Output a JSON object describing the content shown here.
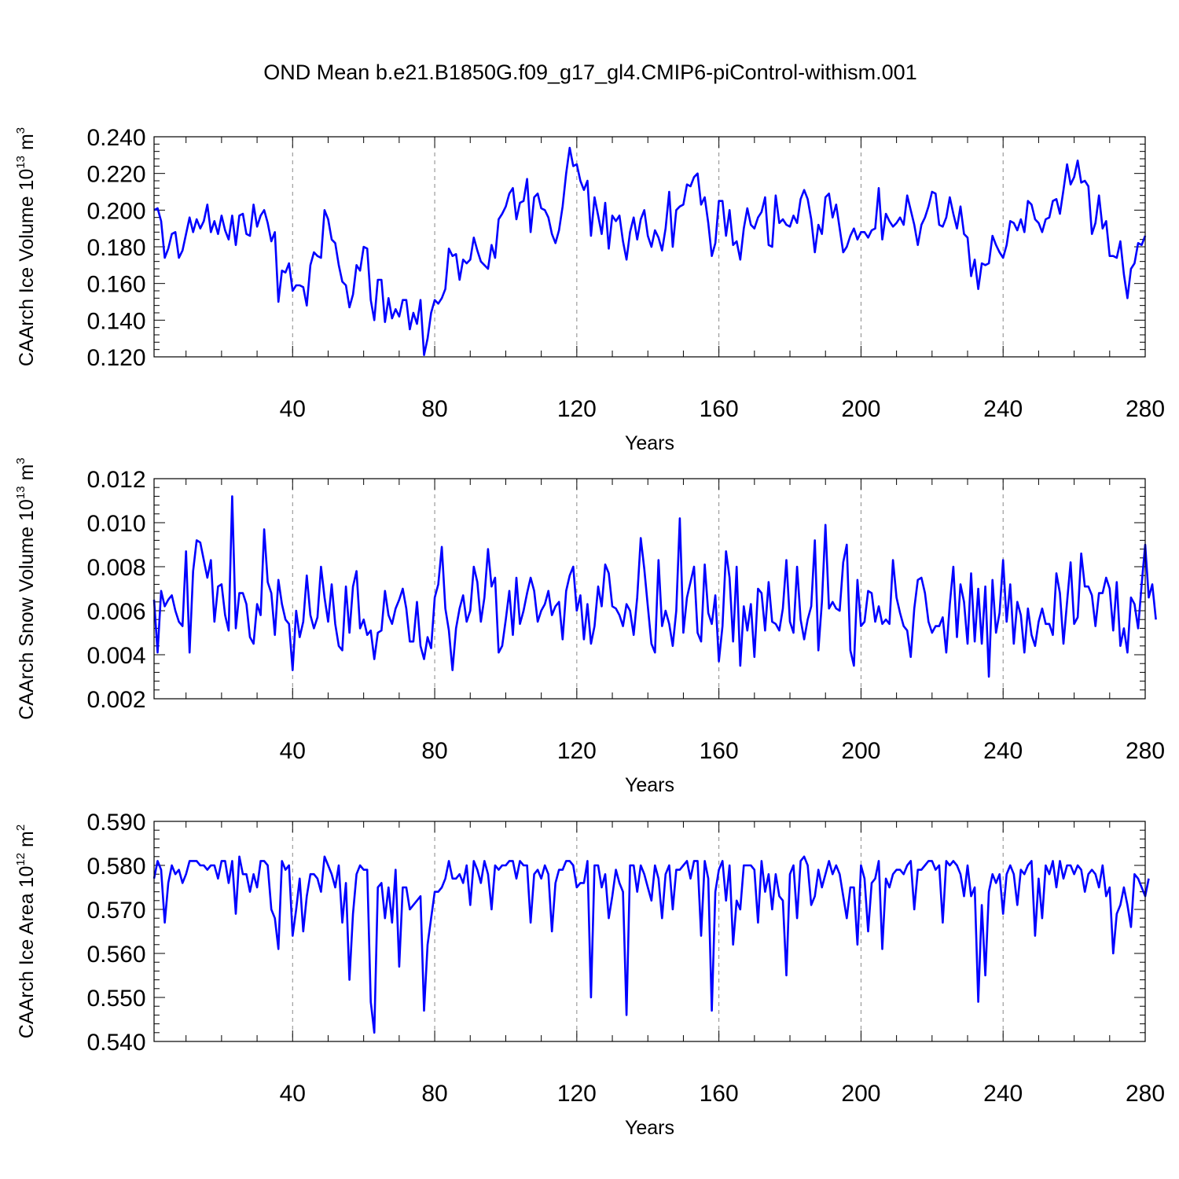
{
  "title": "OND Mean b.e21.B1850G.f09_g17_gl4.CMIP6-piControl-withism.001",
  "colors": {
    "line": "#0000ff",
    "axes": "#000000",
    "grid": "#888888"
  },
  "chart_data": [
    {
      "type": "line",
      "ylabel": "CAArch Ice Volume 10",
      "ylabel_exp": "13",
      "ylabel_unit": " m",
      "ylabel_unit_exp": "3",
      "xlabel": "Years",
      "xlim": [
        1,
        280
      ],
      "ylim": [
        0.12,
        0.24
      ],
      "xticks": [
        40,
        80,
        120,
        160,
        200,
        240,
        280
      ],
      "yticks": [
        "0.120",
        "0.140",
        "0.160",
        "0.180",
        "0.200",
        "0.220",
        "0.240"
      ],
      "x_grid": "dashed vertical at major ticks",
      "series": [
        {
          "values": [
            0.2,
            0.201,
            0.194,
            0.174,
            0.179,
            0.187,
            0.188,
            0.174,
            0.178,
            0.187,
            0.196,
            0.188,
            0.195,
            0.19,
            0.194,
            0.203,
            0.188,
            0.194,
            0.187,
            0.197,
            0.189,
            0.184,
            0.197,
            0.181,
            0.197,
            0.198,
            0.187,
            0.186,
            0.203,
            0.191,
            0.197,
            0.2,
            0.193,
            0.183,
            0.188,
            0.15,
            0.167,
            0.166,
            0.171,
            0.156,
            0.159,
            0.159,
            0.158,
            0.148,
            0.17,
            0.177,
            0.175,
            0.174,
            0.2,
            0.195,
            0.184,
            0.182,
            0.17,
            0.161,
            0.159,
            0.147,
            0.154,
            0.17,
            0.167,
            0.18,
            0.179,
            0.151,
            0.14,
            0.162,
            0.162,
            0.139,
            0.152,
            0.141,
            0.146,
            0.142,
            0.151,
            0.151,
            0.135,
            0.144,
            0.138,
            0.151,
            0.121,
            0.13,
            0.144,
            0.151,
            0.149,
            0.152,
            0.157,
            0.179,
            0.175,
            0.176,
            0.162,
            0.173,
            0.171,
            0.173,
            0.185,
            0.178,
            0.172,
            0.17,
            0.168,
            0.181,
            0.174,
            0.195,
            0.198,
            0.202,
            0.209,
            0.212,
            0.195,
            0.204,
            0.205,
            0.217,
            0.188,
            0.207,
            0.209,
            0.201,
            0.2,
            0.196,
            0.187,
            0.182,
            0.189,
            0.202,
            0.22,
            0.234,
            0.224,
            0.225,
            0.216,
            0.211,
            0.216,
            0.186,
            0.207,
            0.197,
            0.187,
            0.204,
            0.179,
            0.197,
            0.194,
            0.197,
            0.183,
            0.173,
            0.188,
            0.196,
            0.184,
            0.195,
            0.2,
            0.186,
            0.18,
            0.189,
            0.185,
            0.178,
            0.19,
            0.21,
            0.18,
            0.2,
            0.202,
            0.203,
            0.214,
            0.213,
            0.218,
            0.22,
            0.203,
            0.207,
            0.193,
            0.175,
            0.182,
            0.205,
            0.205,
            0.186,
            0.2,
            0.181,
            0.183,
            0.173,
            0.19,
            0.201,
            0.192,
            0.19,
            0.196,
            0.199,
            0.207,
            0.181,
            0.18,
            0.208,
            0.193,
            0.195,
            0.192,
            0.191,
            0.197,
            0.193,
            0.206,
            0.211,
            0.206,
            0.195,
            0.177,
            0.192,
            0.187,
            0.207,
            0.209,
            0.196,
            0.203,
            0.19,
            0.177,
            0.18,
            0.186,
            0.19,
            0.184,
            0.188,
            0.188,
            0.185,
            0.189,
            0.19,
            0.212,
            0.184,
            0.198,
            0.194,
            0.191,
            0.193,
            0.196,
            0.192,
            0.208,
            0.2,
            0.192,
            0.181,
            0.192,
            0.196,
            0.202,
            0.21,
            0.209,
            0.192,
            0.191,
            0.196,
            0.207,
            0.198,
            0.19,
            0.202,
            0.187,
            0.185,
            0.164,
            0.173,
            0.157,
            0.171,
            0.17,
            0.171,
            0.186,
            0.181,
            0.177,
            0.174,
            0.181,
            0.194,
            0.193,
            0.189,
            0.195,
            0.188,
            0.205,
            0.203,
            0.195,
            0.193,
            0.188,
            0.195,
            0.196,
            0.205,
            0.206,
            0.198,
            0.211,
            0.225,
            0.214,
            0.218,
            0.227,
            0.215,
            0.216,
            0.213,
            0.187,
            0.193,
            0.208,
            0.19,
            0.194,
            0.175,
            0.175,
            0.174,
            0.183,
            0.165,
            0.152,
            0.168,
            0.171,
            0.182,
            0.181,
            0.186
          ]
        }
      ]
    },
    {
      "type": "line",
      "ylabel": "CAArch Snow Volume 10",
      "ylabel_exp": "13",
      "ylabel_unit": " m",
      "ylabel_unit_exp": "3",
      "xlabel": "Years",
      "xlim": [
        1,
        280
      ],
      "ylim": [
        0.002,
        0.012
      ],
      "xticks": [
        40,
        80,
        120,
        160,
        200,
        240,
        280
      ],
      "yticks": [
        "0.002",
        "0.004",
        "0.006",
        "0.008",
        "0.010",
        "0.012"
      ],
      "x_grid": "dashed vertical at major ticks",
      "series": [
        {
          "values": [
            0.0065,
            0.0041,
            0.0069,
            0.0062,
            0.0065,
            0.0067,
            0.006,
            0.0055,
            0.0053,
            0.0087,
            0.0041,
            0.0078,
            0.0092,
            0.0091,
            0.0083,
            0.0075,
            0.0083,
            0.0055,
            0.0071,
            0.0072,
            0.0058,
            0.0051,
            0.0112,
            0.0052,
            0.0068,
            0.0068,
            0.0063,
            0.0048,
            0.0045,
            0.0063,
            0.0058,
            0.0097,
            0.0073,
            0.0068,
            0.0049,
            0.0074,
            0.0063,
            0.0056,
            0.0054,
            0.0033,
            0.006,
            0.0048,
            0.0055,
            0.0076,
            0.0058,
            0.0052,
            0.0057,
            0.008,
            0.0066,
            0.0055,
            0.0072,
            0.0054,
            0.0044,
            0.0042,
            0.0071,
            0.005,
            0.0071,
            0.0078,
            0.0052,
            0.0056,
            0.0049,
            0.0051,
            0.0038,
            0.005,
            0.0051,
            0.0069,
            0.0058,
            0.0054,
            0.0061,
            0.0065,
            0.007,
            0.0061,
            0.0046,
            0.0046,
            0.0064,
            0.0044,
            0.0038,
            0.0048,
            0.0043,
            0.0066,
            0.0072,
            0.0089,
            0.0061,
            0.0051,
            0.0033,
            0.0052,
            0.0061,
            0.0067,
            0.0055,
            0.006,
            0.008,
            0.0073,
            0.0055,
            0.0066,
            0.0088,
            0.0071,
            0.0075,
            0.0041,
            0.0044,
            0.0056,
            0.0069,
            0.0049,
            0.0075,
            0.0054,
            0.006,
            0.0068,
            0.0075,
            0.0069,
            0.0055,
            0.006,
            0.0063,
            0.0069,
            0.0058,
            0.0062,
            0.0064,
            0.0047,
            0.0069,
            0.0076,
            0.008,
            0.006,
            0.0067,
            0.0047,
            0.0063,
            0.0045,
            0.0053,
            0.0071,
            0.0062,
            0.0081,
            0.0077,
            0.0062,
            0.0061,
            0.0058,
            0.0053,
            0.0063,
            0.006,
            0.0049,
            0.0066,
            0.0093,
            0.0079,
            0.0062,
            0.0045,
            0.0041,
            0.0083,
            0.0053,
            0.006,
            0.0054,
            0.0044,
            0.006,
            0.0102,
            0.005,
            0.0066,
            0.0073,
            0.008,
            0.005,
            0.0046,
            0.0081,
            0.0059,
            0.0054,
            0.0067,
            0.0037,
            0.0053,
            0.0087,
            0.0075,
            0.0046,
            0.008,
            0.0035,
            0.0062,
            0.0051,
            0.0063,
            0.0039,
            0.007,
            0.0068,
            0.0051,
            0.0073,
            0.0055,
            0.0054,
            0.0051,
            0.0061,
            0.0083,
            0.0055,
            0.005,
            0.008,
            0.0056,
            0.0047,
            0.0056,
            0.0062,
            0.0092,
            0.0042,
            0.0064,
            0.0099,
            0.0061,
            0.0064,
            0.0061,
            0.006,
            0.0082,
            0.009,
            0.0042,
            0.0035,
            0.0074,
            0.0053,
            0.0055,
            0.0069,
            0.0068,
            0.0055,
            0.0062,
            0.0054,
            0.0056,
            0.0054,
            0.0083,
            0.0066,
            0.0059,
            0.0053,
            0.0051,
            0.0039,
            0.0061,
            0.0074,
            0.0075,
            0.0068,
            0.0055,
            0.005,
            0.0053,
            0.0053,
            0.0057,
            0.0041,
            0.0063,
            0.008,
            0.0048,
            0.0072,
            0.0064,
            0.0045,
            0.0077,
            0.0046,
            0.007,
            0.0045,
            0.0071,
            0.003,
            0.0074,
            0.005,
            0.0059,
            0.0083,
            0.0055,
            0.0072,
            0.0045,
            0.0064,
            0.0058,
            0.0041,
            0.0061,
            0.0049,
            0.0044,
            0.0055,
            0.0061,
            0.0054,
            0.0054,
            0.0049,
            0.0077,
            0.0068,
            0.0045,
            0.0064,
            0.0082,
            0.0054,
            0.0057,
            0.0086,
            0.0071,
            0.0071,
            0.0067,
            0.0053,
            0.0068,
            0.0068,
            0.0075,
            0.007,
            0.0051,
            0.0073,
            0.0044,
            0.0052,
            0.0041,
            0.0066,
            0.0063,
            0.0052,
            0.0072,
            0.009,
            0.0066,
            0.0072,
            0.0056
          ]
        }
      ]
    },
    {
      "type": "line",
      "ylabel": "CAArch Ice Area 10",
      "ylabel_exp": "12",
      "ylabel_unit": " m",
      "ylabel_unit_exp": "2",
      "xlabel": "Years",
      "xlim": [
        1,
        280
      ],
      "ylim": [
        0.54,
        0.59
      ],
      "xticks": [
        40,
        80,
        120,
        160,
        200,
        240,
        280
      ],
      "yticks": [
        "0.540",
        "0.550",
        "0.560",
        "0.570",
        "0.580",
        "0.590"
      ],
      "x_grid": "dashed vertical at major ticks",
      "series": [
        {
          "values": [
            0.577,
            0.581,
            0.579,
            0.567,
            0.576,
            0.58,
            0.578,
            0.579,
            0.576,
            0.578,
            0.581,
            0.581,
            0.581,
            0.58,
            0.58,
            0.579,
            0.58,
            0.58,
            0.577,
            0.581,
            0.581,
            0.576,
            0.581,
            0.569,
            0.582,
            0.578,
            0.578,
            0.574,
            0.578,
            0.575,
            0.581,
            0.581,
            0.58,
            0.57,
            0.568,
            0.561,
            0.581,
            0.579,
            0.58,
            0.564,
            0.57,
            0.577,
            0.565,
            0.573,
            0.578,
            0.578,
            0.577,
            0.574,
            0.582,
            0.58,
            0.578,
            0.575,
            0.58,
            0.567,
            0.576,
            0.554,
            0.569,
            0.578,
            0.58,
            0.579,
            0.579,
            0.549,
            0.542,
            0.575,
            0.576,
            0.568,
            0.575,
            0.567,
            0.579,
            0.557,
            0.575,
            0.575,
            0.57,
            0.571,
            0.572,
            0.573,
            0.547,
            0.562,
            0.568,
            0.574,
            0.574,
            0.575,
            0.577,
            0.581,
            0.577,
            0.577,
            0.578,
            0.576,
            0.58,
            0.571,
            0.581,
            0.579,
            0.576,
            0.581,
            0.578,
            0.57,
            0.58,
            0.579,
            0.58,
            0.58,
            0.581,
            0.581,
            0.577,
            0.581,
            0.58,
            0.58,
            0.567,
            0.578,
            0.579,
            0.577,
            0.58,
            0.578,
            0.565,
            0.576,
            0.579,
            0.579,
            0.581,
            0.581,
            0.58,
            0.575,
            0.576,
            0.576,
            0.581,
            0.55,
            0.58,
            0.58,
            0.575,
            0.578,
            0.568,
            0.573,
            0.579,
            0.576,
            0.574,
            0.546,
            0.58,
            0.58,
            0.574,
            0.58,
            0.578,
            0.575,
            0.572,
            0.58,
            0.577,
            0.568,
            0.578,
            0.58,
            0.57,
            0.579,
            0.579,
            0.58,
            0.581,
            0.577,
            0.581,
            0.581,
            0.564,
            0.581,
            0.577,
            0.547,
            0.574,
            0.579,
            0.581,
            0.572,
            0.58,
            0.562,
            0.572,
            0.57,
            0.58,
            0.58,
            0.58,
            0.579,
            0.567,
            0.581,
            0.574,
            0.578,
            0.57,
            0.578,
            0.573,
            0.572,
            0.555,
            0.578,
            0.58,
            0.568,
            0.581,
            0.582,
            0.58,
            0.571,
            0.573,
            0.579,
            0.575,
            0.578,
            0.581,
            0.578,
            0.58,
            0.578,
            0.573,
            0.568,
            0.575,
            0.575,
            0.562,
            0.58,
            0.577,
            0.565,
            0.576,
            0.577,
            0.581,
            0.561,
            0.577,
            0.575,
            0.578,
            0.579,
            0.579,
            0.578,
            0.58,
            0.581,
            0.57,
            0.579,
            0.579,
            0.58,
            0.581,
            0.581,
            0.579,
            0.58,
            0.567,
            0.581,
            0.58,
            0.581,
            0.58,
            0.578,
            0.573,
            0.58,
            0.573,
            0.575,
            0.549,
            0.571,
            0.555,
            0.574,
            0.578,
            0.576,
            0.578,
            0.569,
            0.578,
            0.58,
            0.578,
            0.571,
            0.579,
            0.578,
            0.58,
            0.581,
            0.564,
            0.577,
            0.568,
            0.58,
            0.578,
            0.581,
            0.575,
            0.581,
            0.577,
            0.58,
            0.58,
            0.578,
            0.58,
            0.579,
            0.574,
            0.578,
            0.579,
            0.578,
            0.575,
            0.58,
            0.573,
            0.575,
            0.56,
            0.569,
            0.571,
            0.575,
            0.571,
            0.566,
            0.578,
            0.577,
            0.575,
            0.573,
            0.577
          ]
        }
      ]
    }
  ]
}
